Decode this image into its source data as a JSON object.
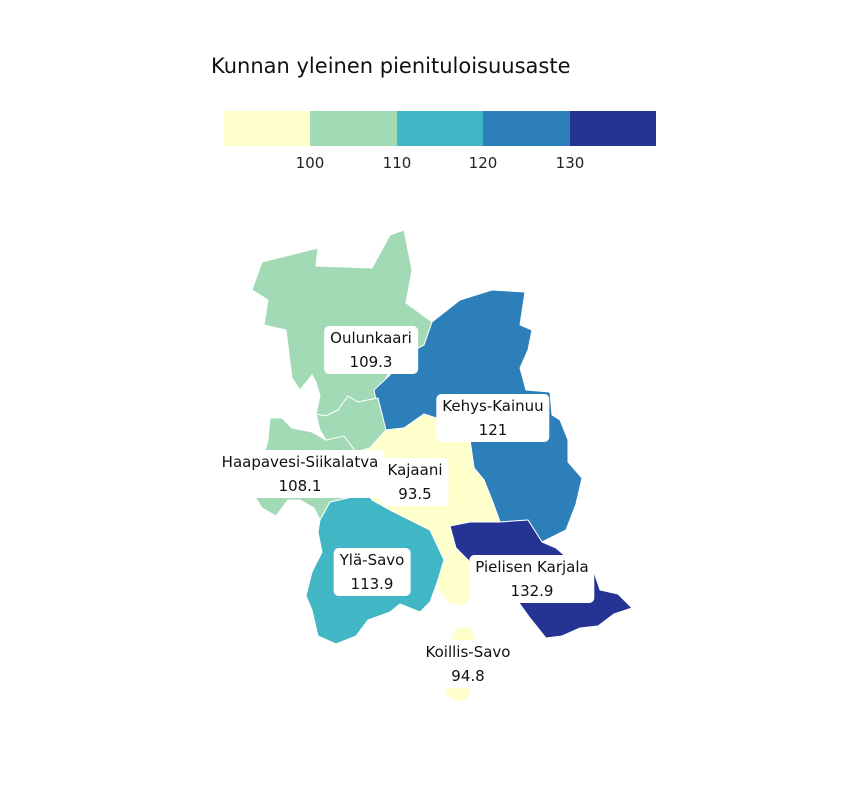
{
  "title": "Kunnan yleinen pienituloisuusaste",
  "legend": {
    "colors": [
      "#ffffcc",
      "#a1dab4",
      "#41b6c4",
      "#2c7fb8",
      "#253494"
    ],
    "ticks": [
      "100",
      "110",
      "120",
      "130"
    ]
  },
  "regions": [
    {
      "name": "Oulunkaari",
      "value": "109.3",
      "color": "#a1dab4"
    },
    {
      "name": "Kehys-Kainuu",
      "value": "121",
      "color": "#2c7fb8"
    },
    {
      "name": "Haapavesi-Siikalatva",
      "value": "108.1",
      "color": "#a1dab4"
    },
    {
      "name": "Kajaani",
      "value": "93.5",
      "color": "#ffffcc"
    },
    {
      "name": "Ylä-Savo",
      "value": "113.9",
      "color": "#41b6c4"
    },
    {
      "name": "Pielisen Karjala",
      "value": "132.9",
      "color": "#253494"
    },
    {
      "name": "Koillis-Savo",
      "value": "94.8",
      "color": "#ffffcc"
    }
  ]
}
